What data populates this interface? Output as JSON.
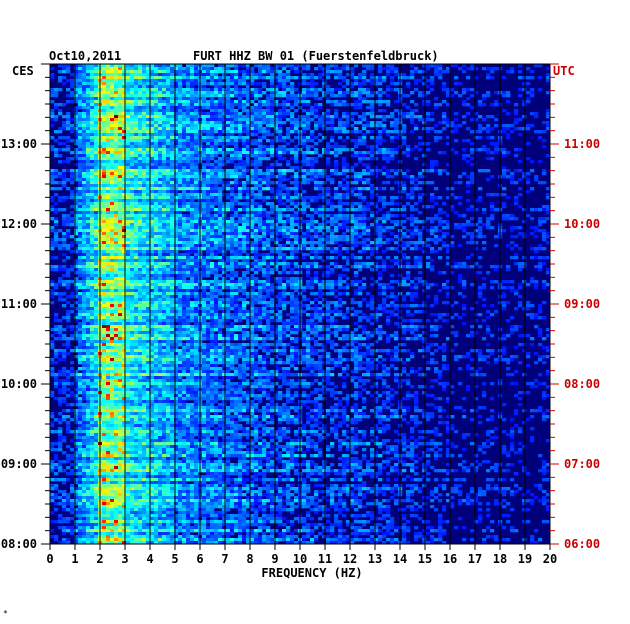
{
  "chart_data": {
    "type": "heatmap",
    "date": "Oct10,2011",
    "title": "FURT HHZ BW 01 (Fuerstenfeldbruck)",
    "left_axis_label": "CES",
    "right_axis_label": "UTC",
    "xlabel": "FREQUENCY (HZ)",
    "xlim": [
      0,
      20
    ],
    "x_ticks": [
      "0",
      "1",
      "2",
      "3",
      "4",
      "5",
      "6",
      "7",
      "8",
      "9",
      "10",
      "11",
      "12",
      "13",
      "14",
      "15",
      "16",
      "17",
      "18",
      "19",
      "20"
    ],
    "left_time_ticks": [
      {
        "t": 0,
        "label": "08:00"
      },
      {
        "t": 1,
        "label": "09:00"
      },
      {
        "t": 2,
        "label": "10:00"
      },
      {
        "t": 3,
        "label": "11:00"
      },
      {
        "t": 4,
        "label": "12:00"
      },
      {
        "t": 5,
        "label": "13:00"
      }
    ],
    "right_time_ticks": [
      {
        "t": 0,
        "label": "06:00"
      },
      {
        "t": 1,
        "label": "07:00"
      },
      {
        "t": 2,
        "label": "08:00"
      },
      {
        "t": 3,
        "label": "09:00"
      },
      {
        "t": 4,
        "label": "10:00"
      },
      {
        "t": 5,
        "label": "11:00"
      }
    ],
    "time_range_hours": [
      0,
      6
    ],
    "dominant_band_hz": [
      2,
      3
    ],
    "colors": {
      "left_axis": "#000000",
      "right_axis": "#cc0000",
      "background": "#00007a"
    },
    "footnote": "*"
  }
}
